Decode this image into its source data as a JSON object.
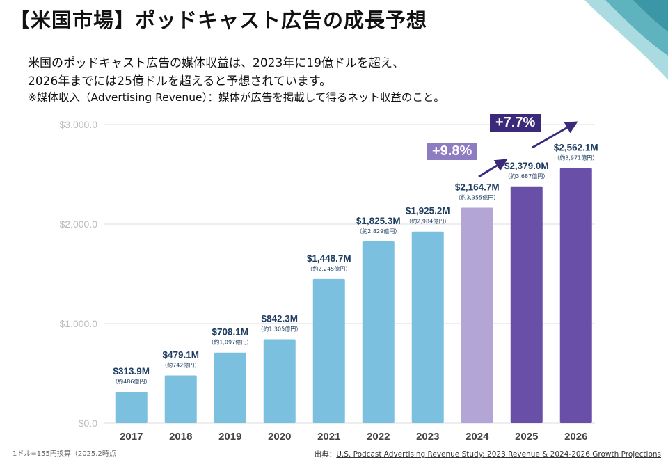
{
  "title": "【米国市場】ポッドキャスト広告の成長予想",
  "subtitle_lines": [
    "米国のポッドキャスト広告の媒体収益は、2023年に19億ドルを超え、",
    "2026年までには25億ドルを超えると予想されています。",
    "※媒体収入（Advertising Revenue）：媒体が広告を掲載して得るネット収益のこと。"
  ],
  "badges": [
    {
      "text": "+9.8%",
      "color": "#8e7cc3"
    },
    {
      "text": "+7.7%",
      "color": "#3b2a7a"
    }
  ],
  "note": "1ドル=155円換算（2025.2時点",
  "source_label": "出典：",
  "source_link": "U.S. Podcast Advertising Revenue Study: 2023 Revenue & 2024-2026 Growth Projections",
  "chart_data": {
    "type": "bar",
    "categories": [
      "2017",
      "2018",
      "2019",
      "2020",
      "2021",
      "2022",
      "2023",
      "2024",
      "2025",
      "2026"
    ],
    "values": [
      313.9,
      479.1,
      708.1,
      842.3,
      1448.7,
      1825.3,
      1925.2,
      2164.7,
      2379.0,
      2562.1
    ],
    "value_labels": [
      "$313.9M",
      "$479.1M",
      "$708.1M",
      "$842.3M",
      "$1,448.7M",
      "$1,825.3M",
      "$1,925.2M",
      "$2,164.7M",
      "$2,379.0M",
      "$2,562.1M"
    ],
    "yen_labels": [
      "（約486億円）",
      "（約742億円）",
      "（約1,097億円）",
      "（約1,305億円）",
      "（約2,245億円）",
      "（約2,829億円）",
      "（約2,984億円）",
      "（約3,355億円）",
      "（約3,687億円）",
      "（約3,971億円）"
    ],
    "colors": [
      "#7cc0df",
      "#7cc0df",
      "#7cc0df",
      "#7cc0df",
      "#7cc0df",
      "#7cc0df",
      "#7cc0df",
      "#b3a6d6",
      "#6a4fa8",
      "#6a4fa8"
    ],
    "yticks": [
      0,
      1000,
      2000,
      3000
    ],
    "ytick_labels": [
      "$0.0",
      "$1,000.0",
      "$2,000.0",
      "$3,000.0"
    ],
    "ylim": [
      0,
      3000
    ],
    "grid": true
  }
}
